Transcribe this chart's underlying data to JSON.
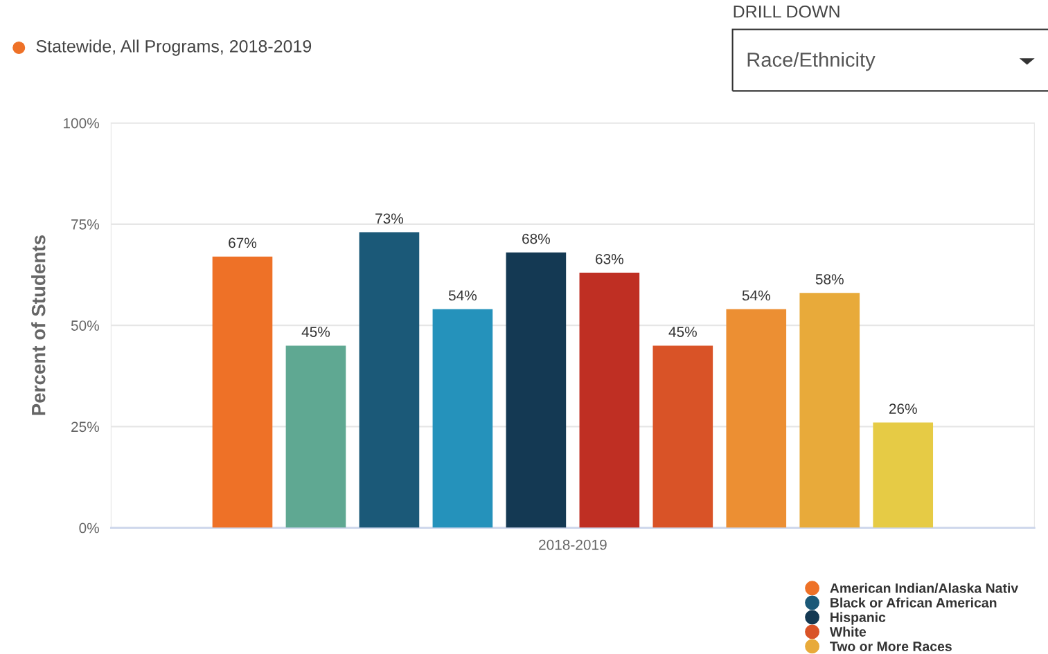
{
  "chart_data": {
    "type": "bar",
    "categories": [
      "2018-2019"
    ],
    "ylabel": "Percent of Students",
    "ylim": [
      0,
      100
    ],
    "yticks": [
      {
        "value": 0,
        "label": "0%"
      },
      {
        "value": 25,
        "label": "25%"
      },
      {
        "value": 50,
        "label": "50%"
      },
      {
        "value": 75,
        "label": "75%"
      },
      {
        "value": 100,
        "label": "100%"
      }
    ],
    "grid": "y",
    "legend": "bottom right",
    "annotations": [
      "Statewide, All Programs, 2018-2019",
      "DRILL DOWN",
      "Race/Ethnicity"
    ],
    "series": [
      {
        "name": "American Indian/Alaska Nativ",
        "color": "#ee7127",
        "values": [
          67
        ],
        "value_labels": [
          "67%"
        ]
      },
      {
        "color": "#5fa892",
        "values": [
          45
        ],
        "value_labels": [
          "45%"
        ]
      },
      {
        "name": "Black or African American",
        "color": "#1b5978",
        "values": [
          73
        ],
        "value_labels": [
          "73%"
        ]
      },
      {
        "color": "#2592bb",
        "values": [
          54
        ],
        "value_labels": [
          "54%"
        ]
      },
      {
        "name": "Hispanic",
        "color": "#143953",
        "values": [
          68
        ],
        "value_labels": [
          "68%"
        ]
      },
      {
        "color": "#bf2f23",
        "values": [
          63
        ],
        "value_labels": [
          "63%"
        ]
      },
      {
        "name": "White",
        "color": "#d95327",
        "values": [
          45
        ],
        "value_labels": [
          "45%"
        ]
      },
      {
        "color": "#ec8f33",
        "values": [
          54
        ],
        "value_labels": [
          "54%"
        ]
      },
      {
        "name": "Two or More Races",
        "color": "#e8aa3a",
        "values": [
          58
        ],
        "value_labels": [
          "58%"
        ]
      },
      {
        "color": "#e6cb45",
        "values": [
          26
        ],
        "value_labels": [
          "26%"
        ]
      }
    ]
  }
}
